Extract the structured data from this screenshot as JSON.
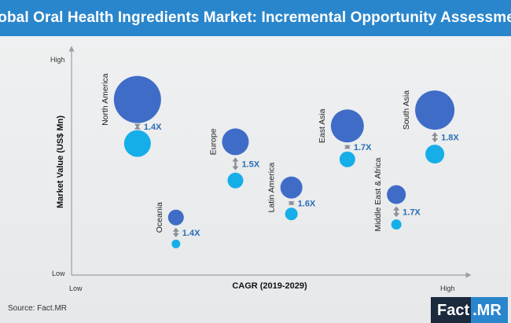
{
  "header": {
    "title": "Global Oral Health Ingredients Market: Incremental Opportunity Assessment"
  },
  "colors": {
    "header_bg": "#2a86cc",
    "bubble_large": "#3f6cc7",
    "bubble_small": "#16aee8",
    "arrow": "#8a8f98",
    "multiplier_text": "#2a6db5"
  },
  "chart_data": {
    "type": "bubble",
    "title": "Global Oral Health Ingredients Market: Incremental Opportunity Assessment",
    "xlabel": "CAGR (2019-2029)",
    "ylabel": "Market Value (US$ Mn)",
    "x_ticks": {
      "low": "Low",
      "high": "High"
    },
    "y_ticks": {
      "low": "Low",
      "high": "High"
    },
    "xlim": [
      0,
      100
    ],
    "ylim": [
      0,
      100
    ],
    "series": [
      {
        "region": "North America",
        "x": 13,
        "y_large": 89,
        "y_small": 64,
        "size_large": 30,
        "size_small": 17,
        "multiplier": "1.4X"
      },
      {
        "region": "Oceania",
        "x": 24,
        "y_large": 22,
        "y_small": 7,
        "size_large": 10,
        "size_small": 5.5,
        "multiplier": "1.4X"
      },
      {
        "region": "Europe",
        "x": 41,
        "y_large": 65,
        "y_small": 43,
        "size_large": 17,
        "size_small": 10,
        "multiplier": "1.5X"
      },
      {
        "region": "Latin America",
        "x": 57,
        "y_large": 39,
        "y_small": 24,
        "size_large": 14,
        "size_small": 8,
        "multiplier": "1.6X"
      },
      {
        "region": "East Asia",
        "x": 73,
        "y_large": 74,
        "y_small": 55,
        "size_large": 21,
        "size_small": 10,
        "multiplier": "1.7X"
      },
      {
        "region": "Middle East & Africa",
        "x": 87,
        "y_large": 35,
        "y_small": 18,
        "size_large": 12,
        "size_small": 6.5,
        "multiplier": "1.7X"
      },
      {
        "region": "South Asia",
        "x": 98,
        "y_large": 83,
        "y_small": 58,
        "size_large": 25,
        "size_small": 12,
        "multiplier": "1.8X"
      }
    ]
  },
  "footer": {
    "source": "Source: Fact.MR",
    "logo_left": "Fact",
    "logo_right": ".MR"
  }
}
